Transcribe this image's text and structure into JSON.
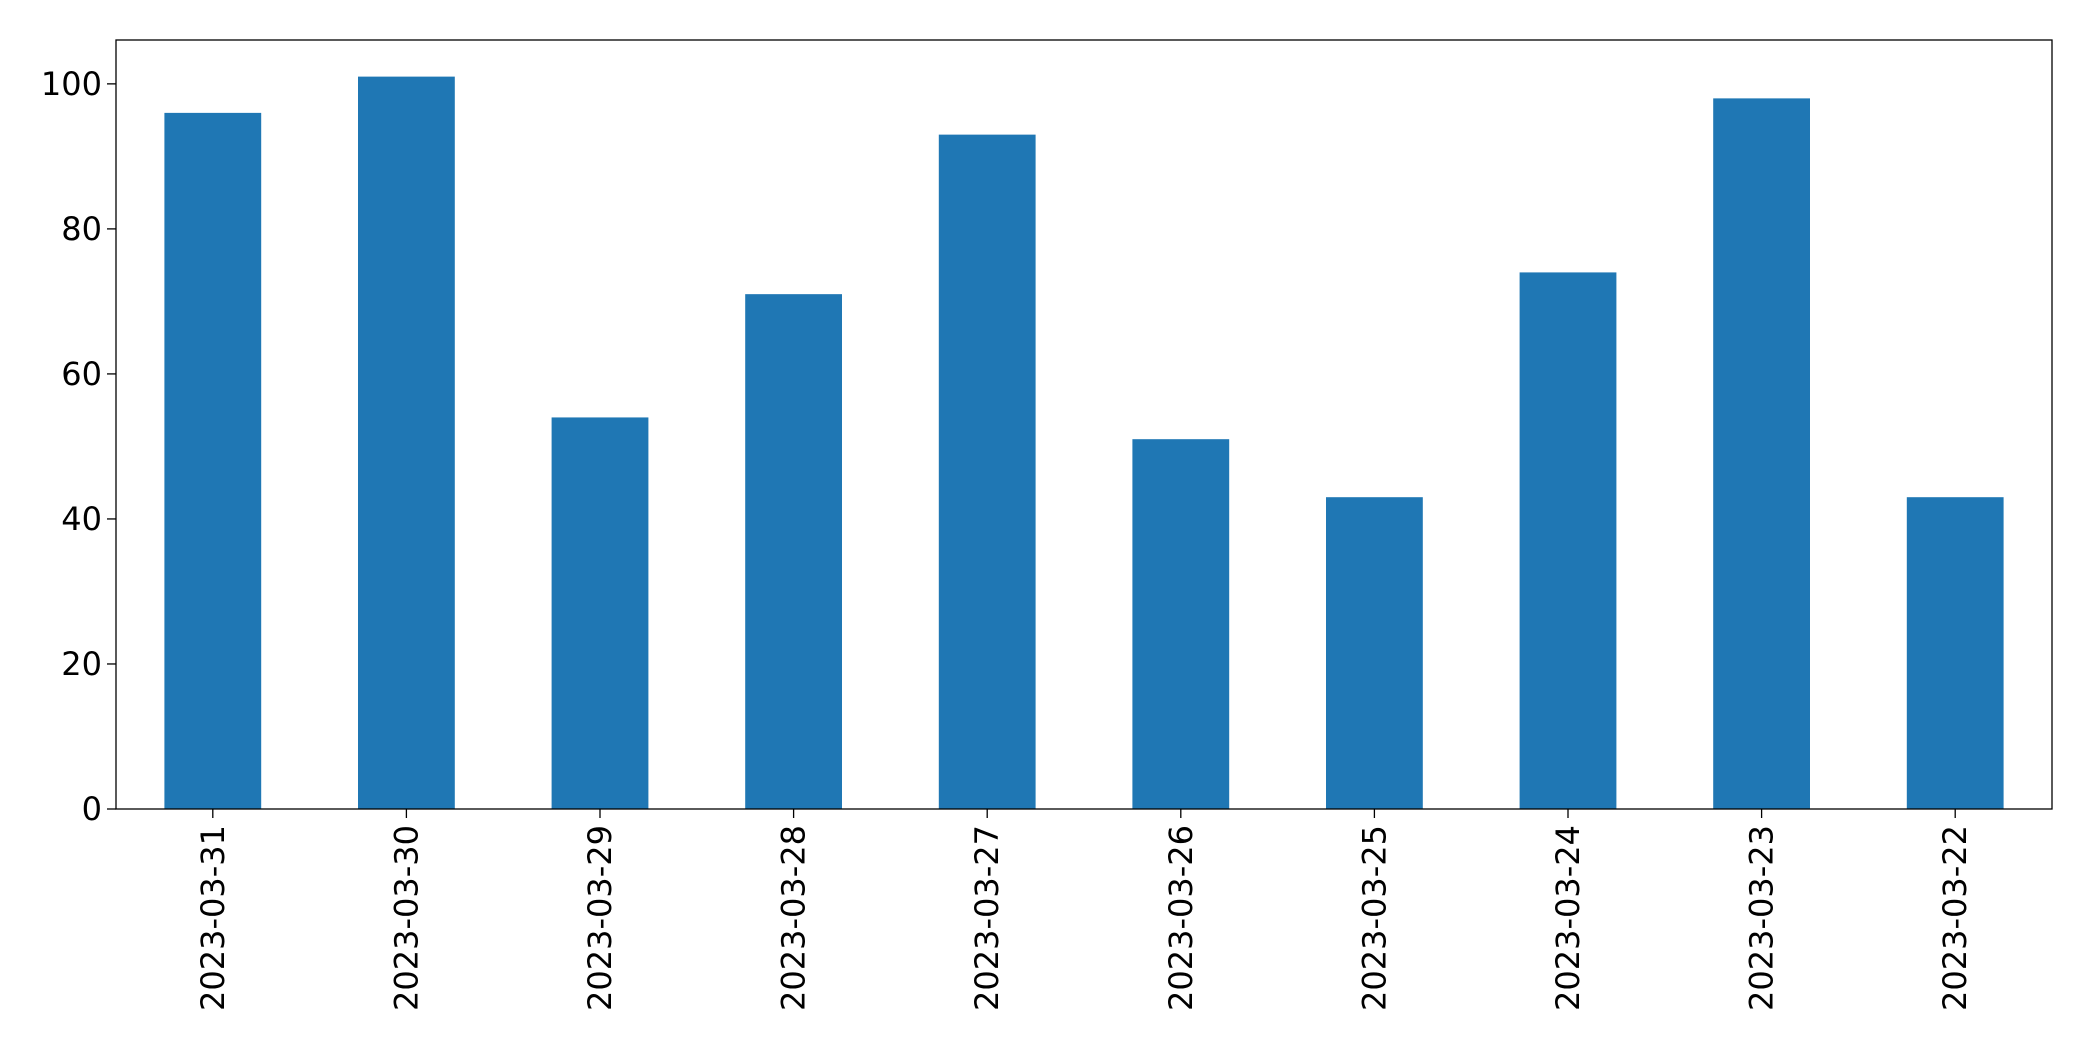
{
  "chart_data": {
    "type": "bar",
    "categories": [
      "2023-03-31",
      "2023-03-30",
      "2023-03-29",
      "2023-03-28",
      "2023-03-27",
      "2023-03-26",
      "2023-03-25",
      "2023-03-24",
      "2023-03-23",
      "2023-03-22"
    ],
    "values": [
      96,
      101,
      54,
      71,
      93,
      51,
      43,
      74,
      98,
      43
    ],
    "color": "#1f77b4",
    "ylim": [
      0,
      106.05
    ],
    "yticks": [
      0,
      20,
      40,
      60,
      80,
      100
    ],
    "grid": false
  }
}
